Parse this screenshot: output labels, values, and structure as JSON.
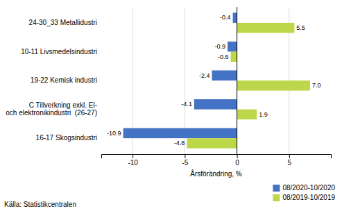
{
  "chart_data": {
    "type": "bar",
    "orientation": "horizontal",
    "xlabel": "Årsförändring, %",
    "source": "Källa: Statistikcentralen",
    "categories": [
      "16-17 Skogsindustri",
      "C Tillverkning exkl. El-\noch elektronikindustri  (26-27)",
      "19-22 Kemisk industri",
      "10-11 Livsmedelsindustri",
      "24-30_33 Metallidustri"
    ],
    "series": [
      {
        "name": "08/2020-10/2020",
        "color": "#4472c4",
        "values": [
          -10.9,
          -4.1,
          -2.4,
          -0.9,
          -0.4
        ]
      },
      {
        "name": "08/2019-10/2019",
        "color": "#bdd74a",
        "values": [
          -4.8,
          1.9,
          7.0,
          -0.6,
          5.5
        ],
        "value_labels": [
          "-4.8",
          "1.9",
          "7.0",
          "-0.6",
          "5.5"
        ]
      }
    ],
    "xlim": [
      -13,
      9
    ],
    "xticks": [
      -10,
      -5,
      0,
      5
    ],
    "grid": true,
    "data_labels": true,
    "legend": "lower right"
  }
}
